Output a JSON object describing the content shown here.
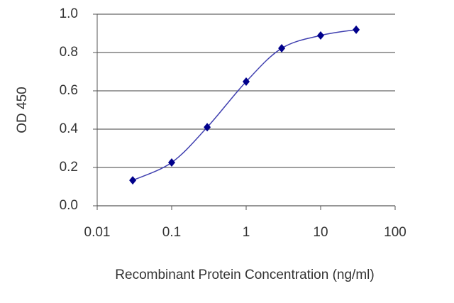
{
  "chart_data": {
    "type": "line",
    "x_label": "Recombinant Protein Concentration (ng/ml)",
    "y_label": "OD 450",
    "x_scale": "log",
    "x": [
      0.03,
      0.1,
      0.3,
      1,
      3,
      10,
      30
    ],
    "series": [
      {
        "color": "#00008b",
        "values": [
          0.133,
          0.226,
          0.41,
          0.648,
          0.822,
          0.889,
          0.919
        ]
      }
    ],
    "xlim": [
      0.01,
      100
    ],
    "xticks": [
      0.01,
      0.1,
      1,
      10,
      100
    ],
    "ylim": [
      0,
      1
    ],
    "yticks": [
      {
        "value": 0,
        "label": "0.0"
      },
      0.2,
      0.4,
      0.6,
      0.8,
      {
        "value": 1,
        "label": "1.0"
      }
    ],
    "grid": true
  }
}
